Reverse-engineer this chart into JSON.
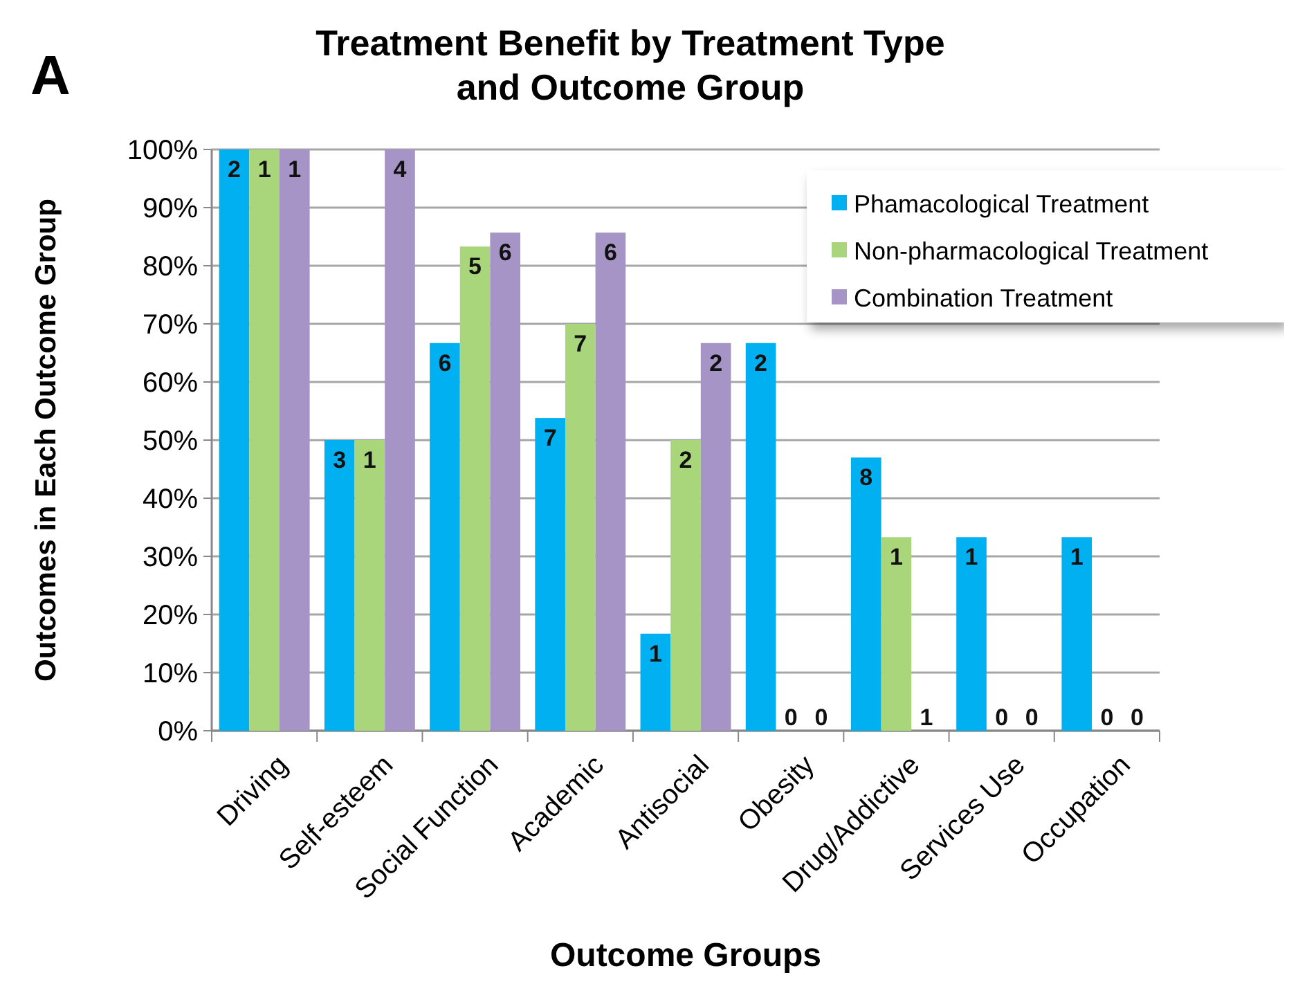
{
  "chart_data": {
    "type": "bar",
    "title": "Treatment Benefit by Treatment Type\nand Outcome Group",
    "xlabel": "Outcome Groups",
    "ylabel": "Outcomes  in Each Outcome  Group",
    "annotations": [
      "A",
      "2",
      "1",
      "1",
      "3",
      "1",
      "4",
      "6",
      "5",
      "6",
      "7",
      "7",
      "6",
      "1",
      "2",
      "2",
      "2",
      "0",
      "0",
      "8",
      "1",
      "1",
      "1",
      "0",
      "0",
      "1",
      "0",
      "0"
    ],
    "categories": [
      "Driving",
      "Self-esteem",
      "Social Function",
      "Academic",
      "Antisocial",
      "Obesity",
      "Drug/Addictive",
      "Services Use",
      "Occupation"
    ],
    "series": [
      {
        "name": "Phamacological Treatment",
        "color": "#00b0f0",
        "values": [
          100,
          50,
          66.7,
          53.8,
          16.7,
          66.7,
          47,
          33.3,
          33.3
        ]
      },
      {
        "name": "Non-pharmacological Treatment",
        "color": "#a9d57b",
        "values": [
          100,
          50,
          83.3,
          70,
          50,
          0,
          33.3,
          0,
          0
        ]
      },
      {
        "name": "Combination Treatment",
        "color": "#a694c6",
        "values": [
          100,
          100,
          85.7,
          85.7,
          66.7,
          0,
          0,
          0,
          0
        ]
      }
    ],
    "ylim": [
      0,
      100
    ],
    "yticks": [
      {
        "value": 0,
        "label": "0%"
      },
      {
        "value": 10,
        "label": "10%"
      },
      {
        "value": 20,
        "label": "20%"
      },
      {
        "value": 30,
        "label": "30%"
      },
      {
        "value": 40,
        "label": "40%"
      },
      {
        "value": 50,
        "label": "50%"
      },
      {
        "value": 60,
        "label": "60%"
      },
      {
        "value": 70,
        "label": "70%"
      },
      {
        "value": 80,
        "label": "80%"
      },
      {
        "value": 90,
        "label": "90%"
      },
      {
        "value": 100,
        "label": "100%"
      }
    ],
    "grid": "y",
    "legend": "top right"
  }
}
